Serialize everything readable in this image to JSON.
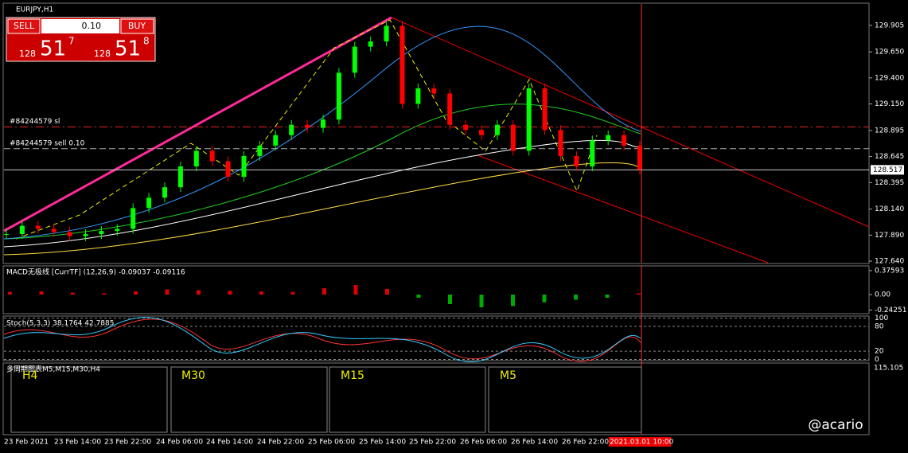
{
  "symbol": "EURJPY,H1",
  "trade_panel": {
    "sell": "SELL",
    "buy": "BUY",
    "lot": "0.10",
    "bid": {
      "big": "128",
      "main": "51",
      "small": "7"
    },
    "ask": {
      "big": "128",
      "main": "51",
      "small": "8"
    }
  },
  "main_chart": {
    "ylim": [
      127.625,
      130.11
    ],
    "yticks": [
      {
        "value": 129.905,
        "label": "129.905"
      },
      {
        "value": 129.65,
        "label": "129.650"
      },
      {
        "value": 129.4,
        "label": "129.400"
      },
      {
        "value": 129.15,
        "label": "129.150"
      },
      {
        "value": 128.895,
        "label": "128.895"
      },
      {
        "value": 128.645,
        "label": "128.645"
      },
      {
        "value": 128.395,
        "label": "128.395"
      },
      {
        "value": 128.14,
        "label": "128.140"
      },
      {
        "value": 127.89,
        "label": "127.890"
      },
      {
        "value": 127.64,
        "label": "127.640"
      }
    ],
    "current_price": 128.517,
    "order_lines": [
      {
        "label": "#84244579 sl",
        "value": 128.93
      },
      {
        "label": "#84244579 sell 0.10",
        "value": 128.72
      }
    ],
    "closes": [
      127.9,
      127.98,
      127.95,
      127.92,
      127.88,
      127.9,
      127.93,
      127.95,
      128.15,
      128.25,
      128.35,
      128.55,
      128.7,
      128.6,
      128.45,
      128.65,
      128.75,
      128.85,
      128.95,
      128.92,
      129.0,
      129.45,
      129.7,
      129.75,
      129.9,
      129.15,
      129.3,
      129.25,
      128.95,
      128.9,
      128.85,
      128.95,
      128.7,
      129.3,
      128.9,
      128.65,
      128.55,
      128.8,
      128.85,
      128.75,
      128.52
    ]
  },
  "macd": {
    "label": "MACD无极线 [CurrTF] (12,26,9) -0.09037 -0.09116",
    "ylim": [
      -0.3,
      0.45
    ],
    "yticks": [
      0.37593,
      {
        "value": 0,
        "label": "0.00"
      },
      -0.24251
    ],
    "histogram": [
      0.04,
      0.05,
      0.03,
      0.02,
      0.05,
      0.08,
      0.07,
      0.06,
      0.05,
      0.04,
      0.1,
      0.15,
      0.09,
      -0.05,
      -0.15,
      -0.2,
      -0.18,
      -0.12,
      -0.08,
      -0.05,
      0.02
    ]
  },
  "stoch": {
    "label": "Stoch(5,3,3) 38.1764 42.7885",
    "ylim": [
      -3,
      105
    ],
    "yticks": [
      100,
      80,
      20,
      0
    ]
  },
  "multi_tf": {
    "label": "多周期图表M5,M15,M30,H4",
    "frames": [
      "H4",
      "M30",
      "M15",
      "M5"
    ],
    "price": "115.105"
  },
  "time_axis": [
    "23 Feb 2021",
    "23 Feb 14:00",
    "23 Feb 22:00",
    "24 Feb 06:00",
    "24 Feb 14:00",
    "24 Feb 22:00",
    "25 Feb 06:00",
    "25 Feb 14:00",
    "25 Feb 22:00",
    "26 Feb 06:00",
    "26 Feb 14:00",
    "26 Feb 22:00",
    "2021.03.01 10:00"
  ],
  "watermark": "@acario"
}
